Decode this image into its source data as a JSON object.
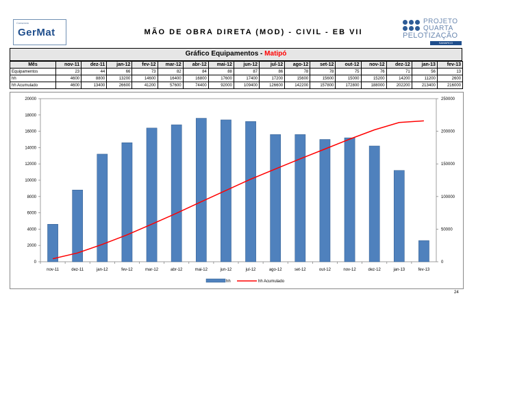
{
  "logo_left": {
    "small": "Consórcio",
    "big": "GerMat"
  },
  "title": "MÃO DE OBRA DIRETA (MOD) - CIVIL - EB VII",
  "logo_right": {
    "line1": "PROJETO",
    "line2": "QUARTA",
    "line3": "PELOTIZAÇÃO",
    "brand": "SAMARCO"
  },
  "table": {
    "title_prefix": "Gráfico Equipamentos - ",
    "title_highlight": "Matipó",
    "header_label": "Mês",
    "rows": [
      {
        "label": "Equipamentos",
        "values": [
          "23",
          "44",
          "66",
          "73",
          "82",
          "84",
          "88",
          "87",
          "86",
          "78",
          "78",
          "75",
          "76",
          "71",
          "56",
          "13"
        ]
      },
      {
        "label": "hh",
        "values": [
          "4600",
          "8800",
          "13200",
          "14600",
          "16400",
          "16800",
          "17600",
          "17400",
          "17200",
          "15600",
          "15600",
          "15000",
          "15200",
          "14200",
          "11200",
          "2600"
        ]
      },
      {
        "label": "hh Acumulado",
        "values": [
          "4600",
          "13400",
          "26600",
          "41200",
          "57600",
          "74400",
          "92000",
          "109400",
          "126600",
          "142200",
          "157800",
          "172800",
          "188000",
          "202200",
          "213400",
          "216000"
        ]
      }
    ]
  },
  "chart_data": {
    "type": "bar",
    "categories": [
      "nov-11",
      "dez-11",
      "jan-12",
      "fev-12",
      "mar-12",
      "abr-12",
      "mai-12",
      "jun-12",
      "jul-12",
      "ago-12",
      "set-12",
      "out-12",
      "nov-12",
      "dez-12",
      "jan-13",
      "fev-13"
    ],
    "series": [
      {
        "name": "hh",
        "type": "bar",
        "axis": "left",
        "color": "#4f81bd",
        "values": [
          4600,
          8800,
          13200,
          14600,
          16400,
          16800,
          17600,
          17400,
          17200,
          15600,
          15600,
          15000,
          15200,
          14200,
          11200,
          2600
        ]
      },
      {
        "name": "hh Acumulado",
        "type": "line",
        "axis": "right",
        "color": "#ff0000",
        "values": [
          4600,
          13400,
          26600,
          41200,
          57600,
          74400,
          92000,
          109400,
          126600,
          142200,
          157800,
          172800,
          188000,
          202200,
          213400,
          216000
        ]
      }
    ],
    "ylim_left": [
      0,
      20000
    ],
    "yticks_left": [
      "0",
      "2000",
      "4000",
      "6000",
      "8000",
      "10000",
      "12000",
      "14000",
      "16000",
      "18000",
      "20000"
    ],
    "ylim_right": [
      0,
      250000
    ],
    "yticks_right": [
      "0",
      "50000",
      "100000",
      "150000",
      "200000",
      "250000"
    ],
    "grid": false,
    "legend": "bottom-center"
  },
  "page_number": "24"
}
